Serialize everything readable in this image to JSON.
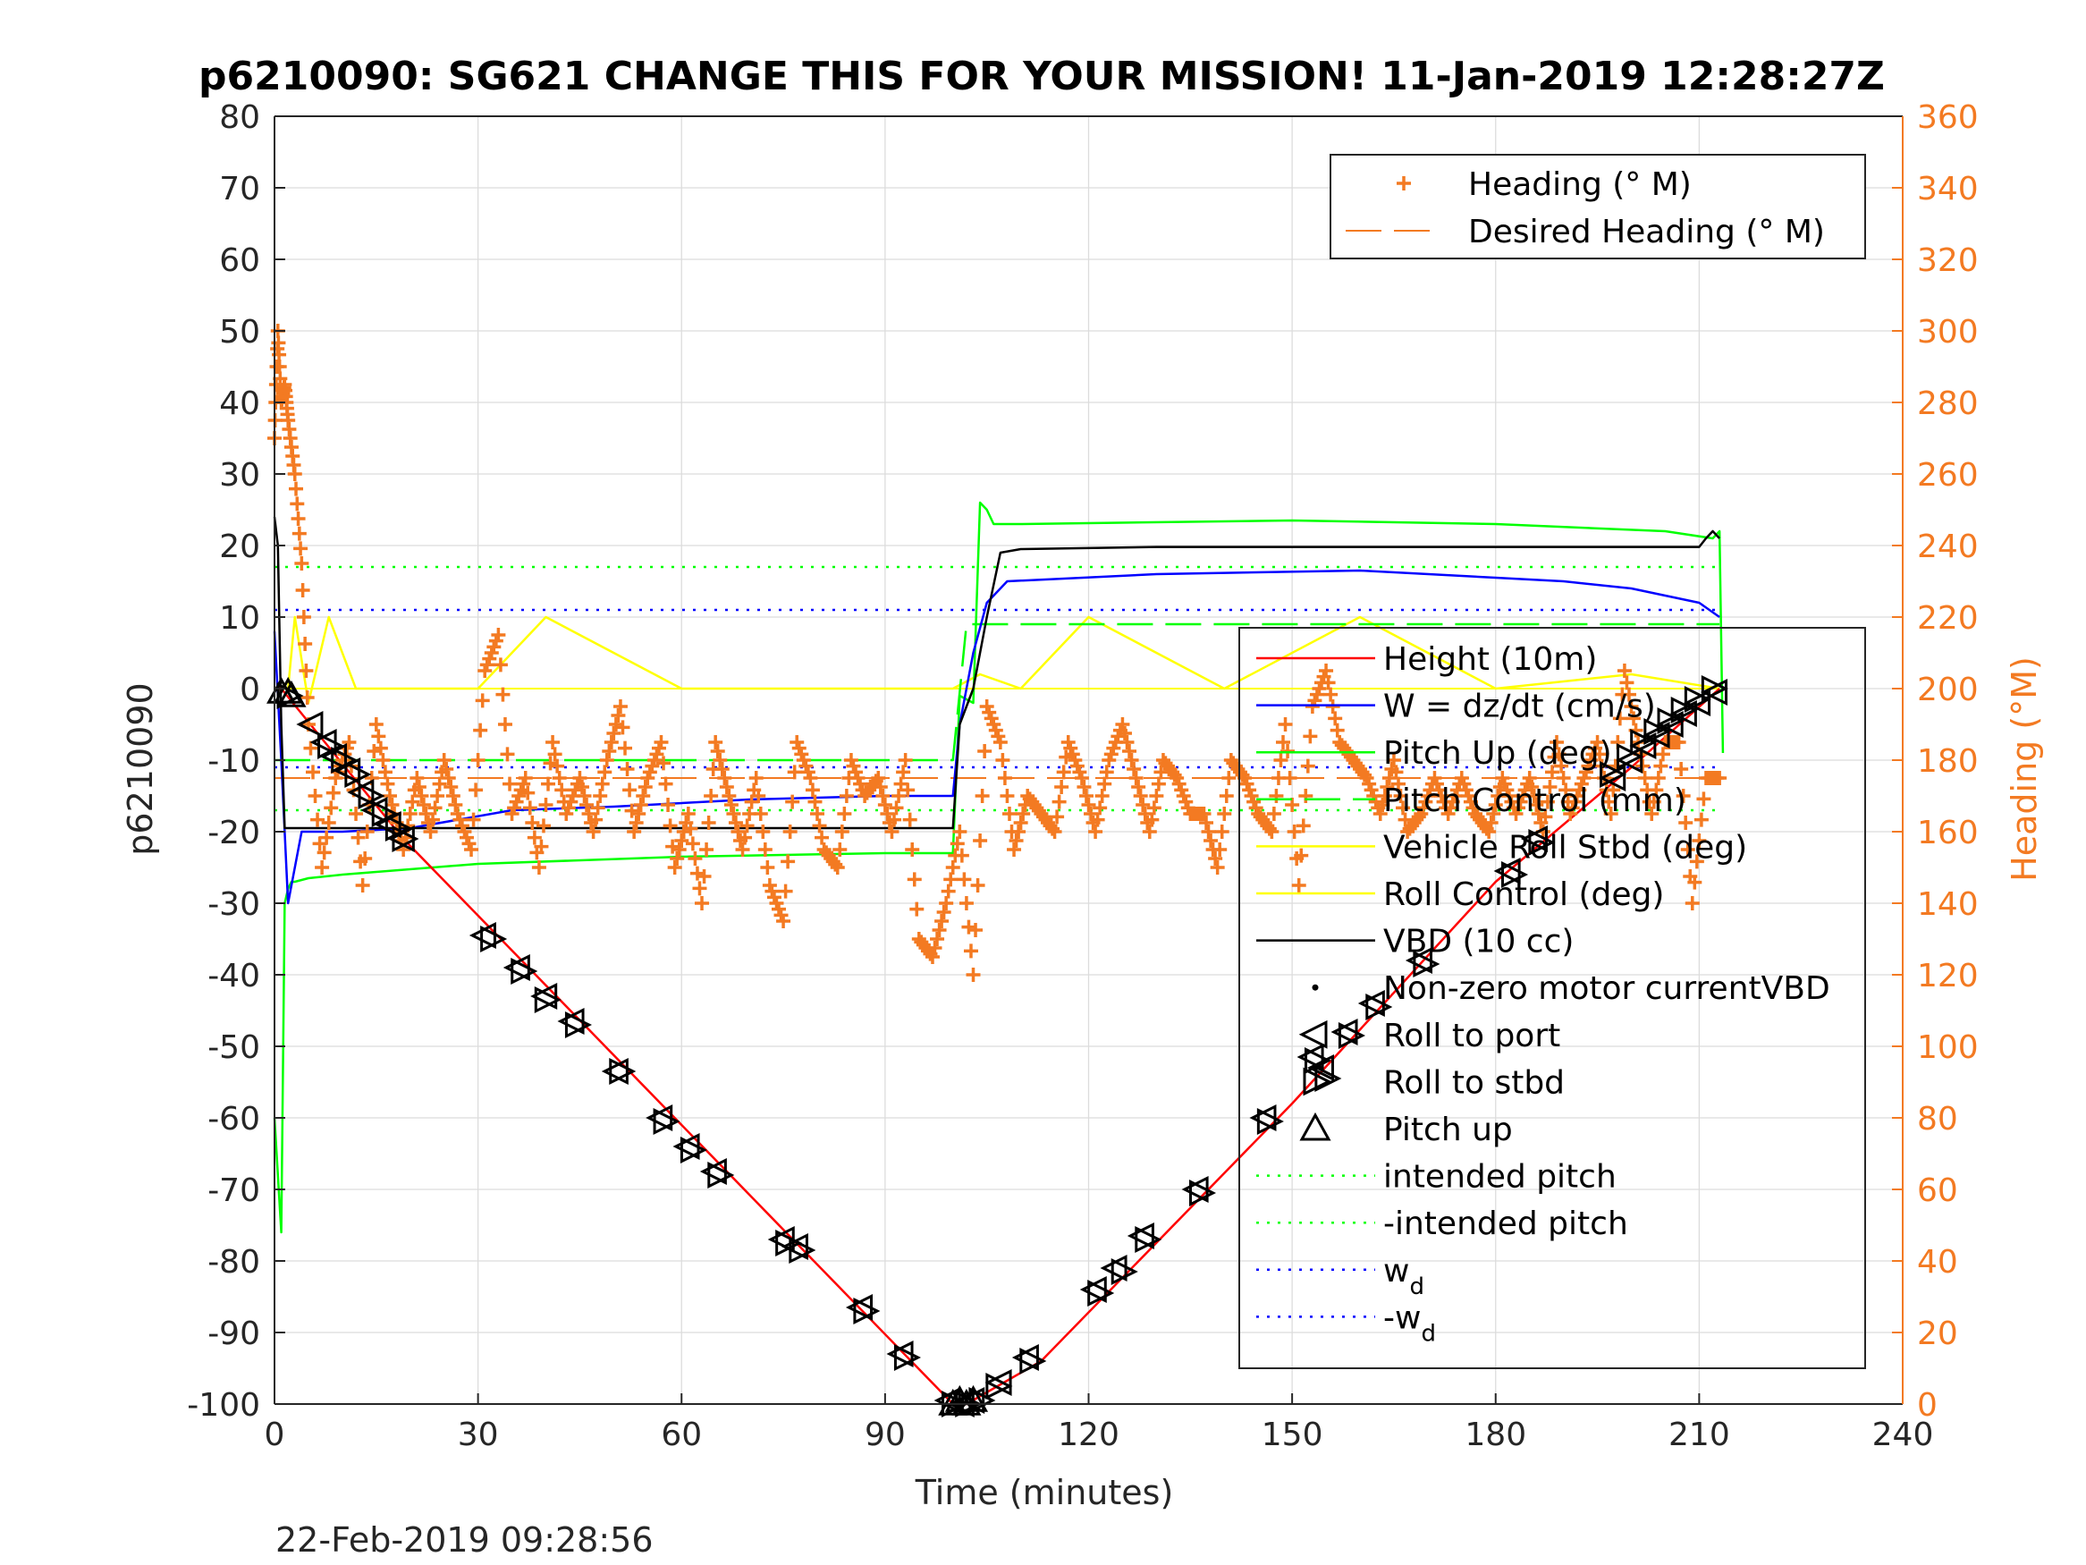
{
  "chart_data": {
    "type": "line",
    "title": "p6210090: SG621 CHANGE THIS FOR YOUR MISSION! 11-Jan-2019 12:28:27Z",
    "xlabel": "Time (minutes)",
    "ylabel": "p6210090",
    "y2label": "Heading (°M)",
    "timestamp": "22-Feb-2019 09:28:56",
    "xlim": [
      0,
      240
    ],
    "ylim": [
      -100,
      80
    ],
    "y2lim": [
      0,
      360
    ],
    "x_ticks": [
      "0",
      "30",
      "60",
      "90",
      "120",
      "150",
      "180",
      "210",
      "240"
    ],
    "y_ticks": [
      "80",
      "70",
      "60",
      "50",
      "40",
      "30",
      "20",
      "10",
      "0",
      "-10",
      "-20",
      "-30",
      "-40",
      "-50",
      "-60",
      "-70",
      "-80",
      "-90",
      "-100"
    ],
    "y2_ticks": [
      "360",
      "340",
      "320",
      "300",
      "280",
      "260",
      "240",
      "220",
      "200",
      "180",
      "160",
      "140",
      "120",
      "100",
      "80",
      "60",
      "40",
      "20",
      "0"
    ],
    "grid": true,
    "colors": {
      "height": "#ff0000",
      "w": "#0000ff",
      "pitch": "#00ff00",
      "roll": "#ffff00",
      "vbd": "#000000",
      "heading": "#F37A22",
      "axis": "#262626"
    },
    "legend_right": {
      "placement": "top-right",
      "entries": [
        "Heading (° M)",
        "Desired Heading (° M)"
      ]
    },
    "legend_left": {
      "placement": "lower-right",
      "entries": [
        "Height (10m)",
        "W = dz/dt (cm/s)",
        "Pitch Up (deg)",
        "Pitch Control (mm)",
        "Vehicle Roll Stbd (deg)",
        "Roll Control (deg)",
        "VBD (10 cc)",
        "Non-zero motor currentVBD",
        "Roll to port",
        "Roll to stbd",
        "Pitch up",
        "intended pitch",
        "-intended pitch",
        "w",
        "-w"
      ],
      "subscript": "d"
    },
    "series": [
      {
        "name": "Height (10m)",
        "x": [
          0,
          1,
          19,
          100,
          102,
          113,
          150,
          180,
          200,
          213
        ],
        "y": [
          0,
          0,
          -21,
          -100,
          -100,
          -94,
          -58,
          -27,
          -11,
          0
        ]
      },
      {
        "name": "W = dz/dt (cm/s)",
        "x": [
          0,
          1,
          2,
          4,
          10,
          20,
          35,
          50,
          70,
          90,
          100,
          101,
          103,
          105,
          108,
          130,
          160,
          180,
          190,
          200,
          205,
          210,
          213
        ],
        "y": [
          8,
          -10,
          -30,
          -20,
          -20,
          -19.5,
          -17,
          -16.5,
          -15.5,
          -15,
          -15,
          -5,
          5,
          12,
          15,
          16,
          16.5,
          15.5,
          15,
          14,
          13,
          12,
          10
        ]
      },
      {
        "name": "Pitch Up (deg)",
        "x": [
          0,
          1,
          1.5,
          2,
          2.5,
          3,
          5,
          10,
          30,
          60,
          90,
          100,
          101,
          103,
          104,
          105,
          106,
          110,
          150,
          180,
          205,
          212,
          213,
          213.5
        ],
        "y": [
          -60,
          -76,
          -30,
          -28,
          -27,
          -27,
          -26.5,
          -26,
          -24.5,
          -23.5,
          -23,
          -23,
          -1,
          -2,
          26,
          25,
          23,
          23,
          23.5,
          23,
          22,
          21,
          22,
          -9
        ]
      },
      {
        "name": "Pitch Control (mm)",
        "x": [
          0,
          100,
          102,
          213
        ],
        "y": [
          -10,
          -10,
          9,
          9
        ]
      },
      {
        "name": "Vehicle Roll Stbd (deg)",
        "x": [
          0,
          2,
          3,
          5,
          8,
          12,
          20,
          30,
          40,
          60,
          80,
          100,
          104,
          110,
          120,
          140,
          160,
          180,
          200,
          213
        ],
        "y": [
          0,
          0,
          10,
          -2,
          10,
          0,
          0,
          0,
          10,
          0,
          0,
          0,
          2,
          0,
          10,
          0,
          10,
          0,
          2,
          0
        ]
      },
      {
        "name": "Roll Control (deg)",
        "x": [
          0,
          213
        ],
        "y": [
          0,
          0
        ]
      },
      {
        "name": "VBD (10 cc)",
        "x": [
          0,
          0.5,
          1,
          1.5,
          2,
          100,
          101,
          103,
          105,
          107,
          110,
          130,
          160,
          190,
          210,
          211,
          212,
          213
        ],
        "y": [
          24,
          20,
          -5,
          -19.5,
          -19.5,
          -19.5,
          -5,
          0,
          10,
          19,
          19.5,
          19.8,
          19.8,
          19.8,
          19.8,
          21,
          22,
          21
        ]
      },
      {
        "name": "intended pitch",
        "x": [
          0,
          213
        ],
        "y": [
          17,
          17
        ]
      },
      {
        "name": "-intended pitch",
        "x": [
          0,
          213
        ],
        "y": [
          -17,
          -17
        ]
      },
      {
        "name": "w_d",
        "x": [
          0,
          213
        ],
        "y": [
          11,
          11
        ]
      },
      {
        "name": "-w_d",
        "x": [
          0,
          213
        ],
        "y": [
          -11,
          -11
        ]
      },
      {
        "name": "Desired Heading (° M)",
        "x": [
          0,
          213
        ],
        "y2": [
          175,
          175
        ]
      },
      {
        "name": "Heading (° M)",
        "x": [
          0,
          0.5,
          1,
          1.5,
          2,
          3,
          4,
          5,
          7,
          9,
          11,
          13,
          15,
          17,
          19,
          21,
          23,
          25,
          27,
          29,
          31,
          33,
          35,
          37,
          39,
          41,
          43,
          45,
          47,
          49,
          51,
          53,
          55,
          57,
          59,
          61,
          63,
          65,
          67,
          69,
          71,
          73,
          75,
          77,
          79,
          81,
          83,
          85,
          87,
          89,
          91,
          93,
          95,
          97,
          99,
          101,
          103,
          105,
          107,
          109,
          111,
          113,
          115,
          117,
          119,
          121,
          123,
          125,
          127,
          129,
          131,
          133,
          135,
          137,
          139,
          141,
          143,
          145,
          147,
          149,
          151,
          153,
          155,
          157,
          159,
          161,
          163,
          165,
          167,
          169,
          171,
          173,
          175,
          177,
          179,
          181,
          183,
          185,
          187,
          189,
          191,
          193,
          195,
          197,
          199,
          201,
          203,
          205,
          207,
          209,
          211,
          213
        ],
        "y2": [
          270,
          300,
          280,
          285,
          275,
          260,
          235,
          190,
          150,
          175,
          185,
          145,
          190,
          170,
          155,
          175,
          160,
          180,
          165,
          155,
          205,
          215,
          165,
          175,
          150,
          185,
          165,
          175,
          160,
          180,
          195,
          160,
          175,
          185,
          150,
          165,
          140,
          185,
          170,
          155,
          175,
          145,
          135,
          185,
          175,
          155,
          150,
          180,
          170,
          175,
          160,
          180,
          130,
          125,
          140,
          160,
          120,
          195,
          185,
          155,
          170,
          165,
          160,
          185,
          175,
          160,
          180,
          190,
          175,
          160,
          180,
          175,
          165,
          165,
          150,
          180,
          175,
          165,
          160,
          190,
          145,
          195,
          205,
          185,
          180,
          175,
          165,
          180,
          160,
          165,
          175,
          165,
          175,
          165,
          160,
          175,
          165,
          175,
          160,
          185,
          165,
          175,
          185,
          165,
          205,
          185,
          165,
          185,
          185,
          140,
          175,
          175
        ]
      },
      {
        "name": "Roll to port",
        "x": [
          5.5,
          7.5,
          9,
          11,
          13,
          15,
          17,
          19,
          31,
          36,
          40,
          44,
          50.5,
          57,
          61,
          65,
          75,
          77,
          86.5,
          92.5,
          99.5,
          101.5,
          103,
          107,
          111,
          121,
          124,
          128,
          136,
          146,
          153,
          154.5,
          158,
          162,
          169,
          182,
          186,
          197.5,
          200,
          202,
          204,
          206,
          208,
          210,
          212.5
        ],
        "y": [
          -5,
          -7.5,
          -9.5,
          -11.5,
          -14.5,
          -17,
          -19,
          -21,
          -34.5,
          -39,
          -43,
          -46.5,
          -53.5,
          -60,
          -64,
          -67.5,
          -77,
          -78,
          -86.5,
          -93,
          -99.5,
          -100,
          -99.5,
          -97,
          -93.5,
          -84,
          -81,
          -76.5,
          -70,
          -60,
          -51.5,
          -53,
          -48,
          -44,
          -38,
          -25.5,
          -21,
          -12.5,
          -10,
          -8,
          -6.5,
          -5,
          -3.5,
          -2,
          -0.5
        ]
      },
      {
        "name": "Roll to stbd",
        "x": [
          2,
          8,
          10,
          12,
          14,
          16,
          18,
          19,
          32,
          36.5,
          40,
          44.5,
          51,
          57.5,
          61.5,
          65.5,
          75.5,
          77.5,
          87,
          93,
          100,
          102,
          104,
          106.5,
          111.5,
          121.5,
          125,
          128.5,
          136.5,
          146.5,
          153.5,
          155,
          158.5,
          162.5,
          169.5,
          182.5,
          186.5,
          197,
          199.5,
          201.5,
          203.5,
          205.5,
          207.5,
          209.5,
          212
        ],
        "y": [
          -1,
          -8,
          -10,
          -12,
          -15,
          -17.5,
          -19.5,
          -21,
          -35,
          -39.5,
          -43.5,
          -47,
          -53.5,
          -60.5,
          -64.5,
          -68,
          -77.5,
          -78.5,
          -87,
          -93.5,
          -100,
          -100,
          -99.5,
          -97.5,
          -94,
          -84.5,
          -81.5,
          -77,
          -70.5,
          -60.5,
          -52,
          -54.5,
          -48.5,
          -44.5,
          -38.5,
          -26,
          -21.5,
          -12,
          -9.5,
          -7.5,
          -6,
          -4.5,
          -3,
          -1.5,
          0
        ]
      },
      {
        "name": "Pitch up",
        "x": [
          1,
          2,
          2.5,
          100,
          101,
          102,
          103
        ],
        "y": [
          -0.5,
          -0.5,
          -1,
          -100,
          -99.5,
          -100,
          -99.5
        ]
      }
    ]
  }
}
